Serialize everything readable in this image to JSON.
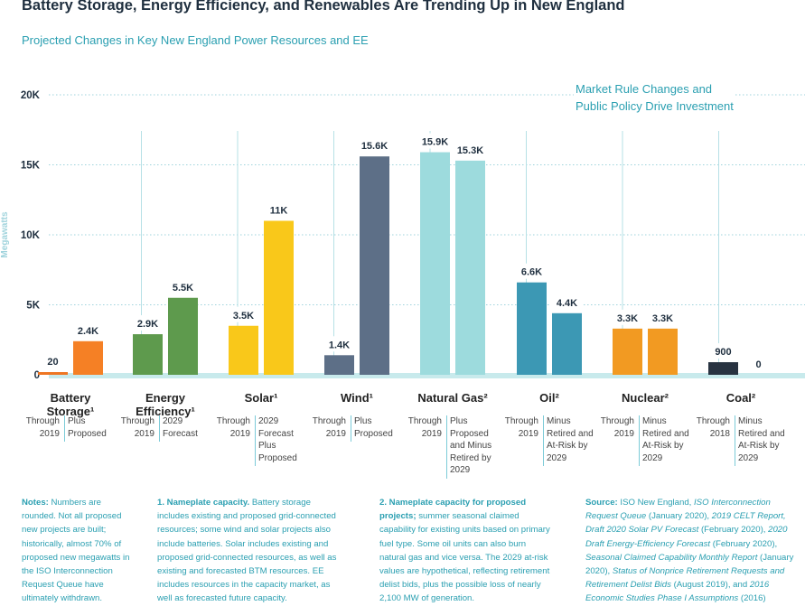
{
  "title": "Battery Storage, Energy Efficiency, and Renewables Are Trending Up in New England",
  "subtitle": "Projected Changes in Key New England Power Resources and EE",
  "callout": [
    "Market Rule Changes and",
    "Public Policy Drive Investment"
  ],
  "chart_data": {
    "type": "bar",
    "title": "Battery Storage, Energy Efficiency, and Renewables Are Trending Up in New England",
    "subtitle": "Projected Changes in Key New England Power Resources and EE",
    "ylabel": "Megawatts",
    "ylim": [
      0,
      20000
    ],
    "yticks": [
      0,
      5000,
      10000,
      15000,
      20000
    ],
    "ytick_labels": [
      "0",
      "5K",
      "10K",
      "15K",
      "20K"
    ],
    "grid": "horizontal dotted",
    "groups": [
      {
        "category": "Battery Storage¹",
        "cat_lines": [
          "Battery",
          "Storage¹"
        ],
        "bars": [
          {
            "value": 20,
            "label": "20",
            "color": "#ee7623",
            "sub": [
              "Through",
              "2019"
            ]
          },
          {
            "value": 2400,
            "label": "2.4K",
            "color": "#f58025",
            "sub": [
              "Plus",
              "Proposed"
            ]
          }
        ]
      },
      {
        "category": "Energy Efficiency¹",
        "cat_lines": [
          "Energy",
          "Efficiency¹"
        ],
        "bars": [
          {
            "value": 2900,
            "label": "2.9K",
            "color": "#5e9a4d",
            "sub": [
              "Through",
              "2019"
            ]
          },
          {
            "value": 5500,
            "label": "5.5K",
            "color": "#5e9a4d",
            "sub": [
              "2029",
              "Forecast"
            ]
          }
        ]
      },
      {
        "category": "Solar¹",
        "cat_lines": [
          "Solar¹"
        ],
        "bars": [
          {
            "value": 3500,
            "label": "3.5K",
            "color": "#f9c81a",
            "sub": [
              "Through",
              "2019"
            ]
          },
          {
            "value": 11000,
            "label": "11K",
            "color": "#f9c81a",
            "sub": [
              "2029",
              "Forecast",
              "Plus",
              "Proposed"
            ]
          }
        ]
      },
      {
        "category": "Wind¹",
        "cat_lines": [
          "Wind¹"
        ],
        "bars": [
          {
            "value": 1400,
            "label": "1.4K",
            "color": "#5d6f87",
            "sub": [
              "Through",
              "2019"
            ]
          },
          {
            "value": 15600,
            "label": "15.6K",
            "color": "#5d6f87",
            "sub": [
              "Plus",
              "Proposed"
            ]
          }
        ]
      },
      {
        "category": "Natural Gas²",
        "cat_lines": [
          "Natural Gas²"
        ],
        "bars": [
          {
            "value": 15900,
            "label": "15.9K",
            "color": "#9ddbdd",
            "sub": [
              "Through",
              "2019"
            ]
          },
          {
            "value": 15300,
            "label": "15.3K",
            "color": "#9ddbdd",
            "sub": [
              "Plus",
              "Proposed",
              "and Minus",
              "Retired by",
              "2029"
            ]
          }
        ]
      },
      {
        "category": "Oil²",
        "cat_lines": [
          "Oil²"
        ],
        "bars": [
          {
            "value": 6600,
            "label": "6.6K",
            "color": "#3c98b4",
            "sub": [
              "Through",
              "2019"
            ]
          },
          {
            "value": 4400,
            "label": "4.4K",
            "color": "#3c98b4",
            "sub": [
              "Minus",
              "Retired and",
              "At-Risk by",
              "2029"
            ]
          }
        ]
      },
      {
        "category": "Nuclear²",
        "cat_lines": [
          "Nuclear²"
        ],
        "bars": [
          {
            "value": 3300,
            "label": "3.3K",
            "color": "#f29a22",
            "sub": [
              "Through",
              "2019"
            ]
          },
          {
            "value": 3300,
            "label": "3.3K",
            "color": "#f29a22",
            "sub": [
              "Minus",
              "Retired and",
              "At-Risk by",
              "2029"
            ]
          }
        ]
      },
      {
        "category": "Coal²",
        "cat_lines": [
          "Coal²"
        ],
        "bars": [
          {
            "value": 900,
            "label": "900",
            "color": "#283341",
            "sub": [
              "Through",
              "2018"
            ]
          },
          {
            "value": 0,
            "label": "0",
            "color": "#283341",
            "sub": [
              "Minus",
              "Retired and",
              "At-Risk by",
              "2029"
            ]
          }
        ]
      }
    ]
  },
  "notes": {
    "n1": {
      "head": "Notes:",
      "body": " Numbers are rounded. Not all proposed new projects are built; historically, almost 70% of proposed new megawatts in the ISO Interconnection Request Queue have ultimately withdrawn."
    },
    "n2": {
      "head": "1. Nameplate capacity.",
      "body": " Battery storage includes existing and proposed grid-connected resources; some wind and solar projects also include batteries. Solar includes existing and proposed grid-connected resources, as well as existing and forecasted BTM resources. EE includes resources in the capacity market, as well as forecasted future capacity."
    },
    "n3": {
      "head": "2. Nameplate capacity for proposed projects;",
      "body": " summer seasonal claimed capability for existing units based on primary fuel type. Some oil units can also burn natural gas and vice versa. The 2029 at-risk values are hypothetical, reflecting retirement delist bids, plus the possible loss of nearly 2,100 MW of generation."
    },
    "n4": {
      "head": "Source:",
      "parts": [
        {
          "t": " ISO New England, ",
          "i": false
        },
        {
          "t": "ISO Interconnection Request Queue",
          "i": true
        },
        {
          "t": " (January 2020), ",
          "i": false
        },
        {
          "t": "2019 CELT Report, Draft 2020 Solar PV Forecast",
          "i": true
        },
        {
          "t": " (February 2020), ",
          "i": false
        },
        {
          "t": "2020 Draft Energy-Efficiency Forecast",
          "i": true
        },
        {
          "t": " (February 2020), ",
          "i": false
        },
        {
          "t": "Seasonal Claimed Capability Monthly Report",
          "i": true
        },
        {
          "t": " (January 2020), ",
          "i": false
        },
        {
          "t": "Status of Nonprice Retirement Requests and Retirement Delist Bids",
          "i": true
        },
        {
          "t": " (August 2019), and ",
          "i": false
        },
        {
          "t": "2016 Economic Studies Phase I Assumptions",
          "i": true
        },
        {
          "t": " (2016)",
          "i": false
        }
      ]
    }
  }
}
